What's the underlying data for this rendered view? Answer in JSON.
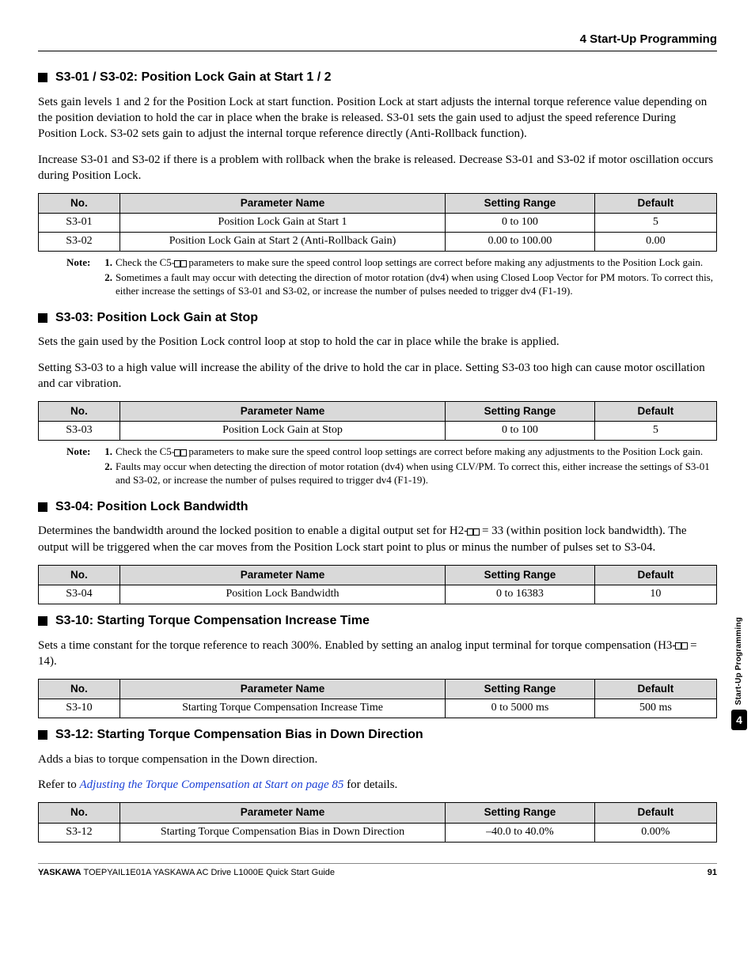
{
  "header": {
    "chapter": "4  Start-Up Programming"
  },
  "side_tab": {
    "label": "Start-Up Programming",
    "chip": "4"
  },
  "sections": {
    "s3_01_02": {
      "title": "S3-01 / S3-02: Position Lock Gain at Start 1 / 2",
      "p1": "Sets gain levels 1 and 2 for the Position Lock at start function. Position Lock at start adjusts the internal torque reference value depending on the position deviation to hold the car in place when the brake is released. S3-01 sets the gain used to adjust the speed reference During Position Lock. S3-02 sets gain to adjust the internal torque reference directly (Anti-Rollback function).",
      "p2": "Increase S3-01 and S3-02 if there is a problem with rollback when the brake is released. Decrease S3-01 and S3-02 if motor oscillation occurs during Position Lock.",
      "table": {
        "headers": [
          "No.",
          "Parameter Name",
          "Setting Range",
          "Default"
        ],
        "rows": [
          [
            "S3-01",
            "Position Lock Gain at Start 1",
            "0 to 100",
            "5"
          ],
          [
            "S3-02",
            "Position Lock Gain at Start 2 (Anti-Rollback Gain)",
            "0.00 to 100.00",
            "0.00"
          ]
        ]
      },
      "notes": [
        "Check the C5-▢▢ parameters to make sure the speed control loop settings are correct before making any adjustments to the Position Lock gain.",
        "Sometimes a fault may occur with detecting the direction of motor rotation (dv4) when using Closed Loop Vector for PM motors. To correct this, either increase the settings of S3-01 and S3-02, or increase the number of pulses needed to trigger dv4 (F1-19)."
      ]
    },
    "s3_03": {
      "title": "S3-03: Position Lock Gain at Stop",
      "p1": "Sets the gain used by the Position Lock control loop at stop to hold the car in place while the brake is applied.",
      "p2": "Setting S3-03 to a high value will increase the ability of the drive to hold the car in place. Setting S3-03 too high can cause motor oscillation and car vibration.",
      "table": {
        "headers": [
          "No.",
          "Parameter Name",
          "Setting Range",
          "Default"
        ],
        "rows": [
          [
            "S3-03",
            "Position Lock Gain at Stop",
            "0 to 100",
            "5"
          ]
        ]
      },
      "notes": [
        "Check the C5-▢▢ parameters to make sure the speed control loop settings are correct before making any adjustments to the Position Lock gain.",
        "Faults may occur when detecting the direction of motor rotation (dv4) when using CLV/PM. To correct this, either increase the settings of S3-01 and S3-02, or increase the number of pulses required to trigger dv4 (F1-19)."
      ]
    },
    "s3_04": {
      "title": "S3-04: Position Lock Bandwidth",
      "p1": "Determines the bandwidth around the locked position to enable a digital output set for H2-▢▢ = 33 (within position lock bandwidth). The output will be triggered when the car moves from the Position Lock start point to plus or minus the number of pulses set to S3-04.",
      "table": {
        "headers": [
          "No.",
          "Parameter Name",
          "Setting Range",
          "Default"
        ],
        "rows": [
          [
            "S3-04",
            "Position Lock Bandwidth",
            "0 to 16383",
            "10"
          ]
        ]
      }
    },
    "s3_10": {
      "title": "S3-10: Starting Torque Compensation Increase Time",
      "p1": "Sets a time constant for the torque reference to reach 300%. Enabled by setting an analog input terminal for torque compensation (H3-▢▢ = 14).",
      "table": {
        "headers": [
          "No.",
          "Parameter Name",
          "Setting Range",
          "Default"
        ],
        "rows": [
          [
            "S3-10",
            "Starting Torque Compensation Increase Time",
            "0 to 5000 ms",
            "500 ms"
          ]
        ]
      }
    },
    "s3_12": {
      "title": "S3-12: Starting Torque Compensation Bias in Down Direction",
      "p1": "Adds a bias to torque compensation in the Down direction.",
      "p2_prefix": "Refer to ",
      "p2_link": "Adjusting the Torque Compensation at Start on page 85",
      "p2_suffix": " for details.",
      "table": {
        "headers": [
          "No.",
          "Parameter Name",
          "Setting Range",
          "Default"
        ],
        "rows": [
          [
            "S3-12",
            "Starting Torque Compensation Bias in Down Direction",
            "–40.0 to 40.0%",
            "0.00%"
          ]
        ]
      }
    }
  },
  "note_label": "Note:",
  "footer": {
    "brand": "YASKAWA",
    "doc": " TOEPYAIL1E01A YASKAWA AC Drive L1000E Quick Start Guide",
    "page": "91"
  }
}
